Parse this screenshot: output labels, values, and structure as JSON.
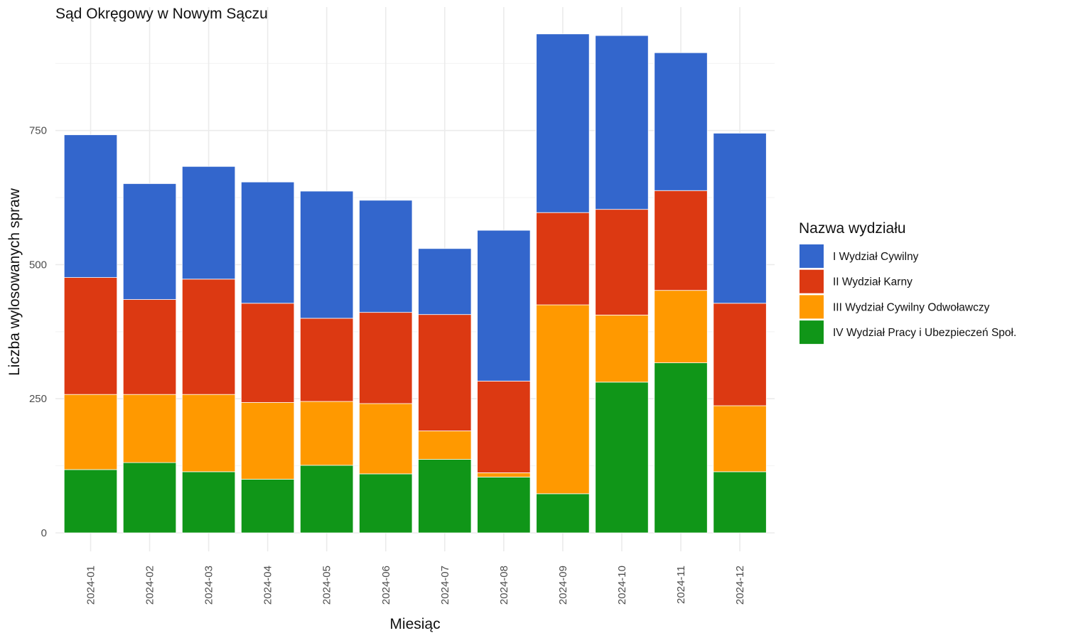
{
  "chart_data": {
    "type": "bar",
    "stacked": true,
    "title": "Sąd Okręgowy w Nowym Sączu",
    "xlabel": "Miesiąc",
    "ylabel": "Liczba wylosowanych spraw",
    "categories": [
      "2024-01",
      "2024-02",
      "2024-03",
      "2024-04",
      "2024-05",
      "2024-06",
      "2024-07",
      "2024-08",
      "2024-09",
      "2024-10",
      "2024-11",
      "2024-12"
    ],
    "ylim": [
      0,
      980
    ],
    "yticks": [
      0,
      250,
      500,
      750
    ],
    "grid": true,
    "legend_title": "Nazwa wydziału",
    "legend_position": "right",
    "series": [
      {
        "name": "IV Wydział Pracy i Ubezpieczeń Społ.",
        "color": "#109618",
        "values": [
          118,
          131,
          114,
          100,
          126,
          110,
          137,
          104,
          73,
          281,
          317,
          114
        ]
      },
      {
        "name": "III Wydział Cywilny Odwoławczy",
        "color": "#ff9900",
        "values": [
          140,
          127,
          144,
          143,
          119,
          131,
          53,
          8,
          352,
          125,
          135,
          123
        ]
      },
      {
        "name": "II Wydział Karny",
        "color": "#dc3912",
        "values": [
          218,
          177,
          215,
          185,
          155,
          170,
          217,
          171,
          172,
          197,
          186,
          191
        ]
      },
      {
        "name": "I Wydział Cywilny",
        "color": "#3366cc",
        "values": [
          266,
          216,
          210,
          226,
          237,
          209,
          123,
          281,
          333,
          324,
          257,
          317
        ]
      }
    ],
    "legend_order": [
      "I Wydział Cywilny",
      "II Wydział Karny",
      "III Wydział Cywilny Odwoławczy",
      "IV Wydział Pracy i Ubezpieczeń Społ."
    ]
  }
}
